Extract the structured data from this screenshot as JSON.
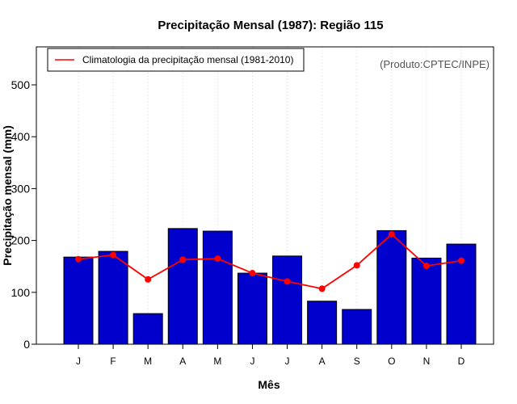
{
  "chart_data": {
    "type": "bar",
    "title": "Precipitação Mensal (1987): Região 115",
    "xlabel": "Mês",
    "ylabel": "Precipitação mensal (mm)",
    "source_note": "(Produto:CPTEC/INPE)",
    "categories": [
      "J",
      "F",
      "M",
      "A",
      "M",
      "J",
      "J",
      "A",
      "S",
      "O",
      "N",
      "D"
    ],
    "ylim": [
      0,
      550
    ],
    "yticks": [
      0,
      100,
      200,
      300,
      400,
      500
    ],
    "series": [
      {
        "name": "Precipitação mensal (1987)",
        "type": "bar",
        "color": "#0000cd",
        "values": [
          168,
          179,
          59,
          223,
          218,
          137,
          170,
          83,
          67,
          219,
          166,
          193
        ]
      },
      {
        "name": "Climatologia da precipitação mensal (1981-2010)",
        "type": "line",
        "color": "#ff0000",
        "values": [
          164,
          172,
          125,
          163,
          165,
          137,
          121,
          107,
          152,
          212,
          151,
          161
        ]
      }
    ],
    "legend": {
      "position": "top-left",
      "entries": [
        "Climatologia da precipitação mensal (1981-2010)"
      ]
    },
    "grid": "vertical-dotted"
  }
}
